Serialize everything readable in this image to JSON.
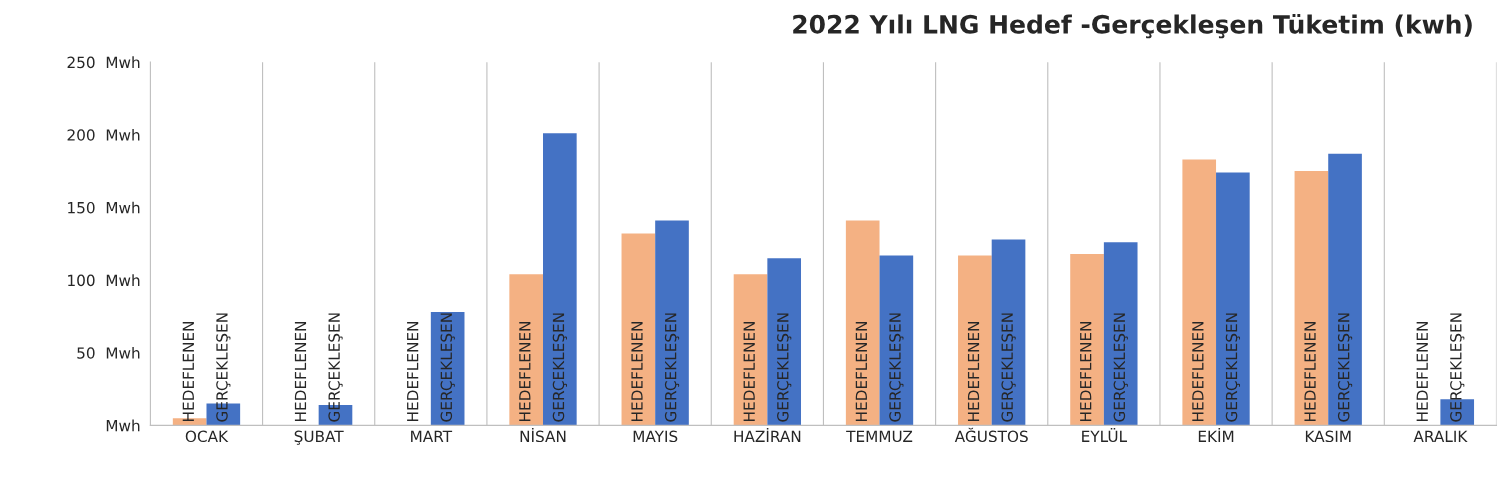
{
  "chart_data": {
    "type": "bar",
    "title": "2022 Yılı LNG Hedef -Gerçekleşen Tüketim (kwh)",
    "categories": [
      "OCAK",
      "ŞUBAT",
      "MART",
      "NİSAN",
      "MAYIS",
      "HAZİRAN",
      "TEMMUZ",
      "AĞUSTOS",
      "EYLÜL",
      "EKİM",
      "KASIM",
      "ARALIK"
    ],
    "series": [
      {
        "name": "HEDEFLENEN",
        "color": "#f4b183",
        "values": [
          5,
          null,
          null,
          104,
          132,
          104,
          141,
          117,
          118,
          183,
          175,
          null
        ]
      },
      {
        "name": "GERÇEKLEŞEN",
        "color": "#4472c4",
        "values": [
          15,
          14,
          78,
          201,
          141,
          115,
          117,
          128,
          126,
          174,
          187,
          18
        ]
      }
    ],
    "ylim": [
      0,
      250
    ],
    "yticks": [
      {
        "value": 0,
        "label": "Mwh"
      },
      {
        "value": 50,
        "label": "50  Mwh"
      },
      {
        "value": 100,
        "label": "100  Mwh"
      },
      {
        "value": 150,
        "label": "150  Mwh"
      },
      {
        "value": 200,
        "label": "200  Mwh"
      },
      {
        "value": 250,
        "label": "250  Mwh"
      }
    ],
    "grid": "x",
    "legend": false
  }
}
